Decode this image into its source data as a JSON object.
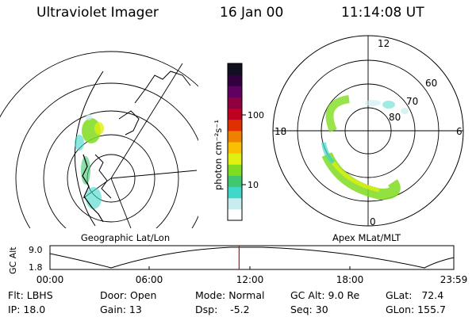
{
  "header": {
    "title": "Ultraviolet Imager",
    "date": "16 Jan 00",
    "time": "11:14:08 UT"
  },
  "colorbar": {
    "label": "photon cm⁻²s⁻¹",
    "ticks": [
      "100",
      "10"
    ],
    "colors": [
      "#ffffff",
      "#c8ecf0",
      "#40d8c8",
      "#40c870",
      "#80dc20",
      "#e0f010",
      "#f8c000",
      "#f08000",
      "#e03000",
      "#c00020",
      "#900040",
      "#600060",
      "#300040",
      "#101020"
    ]
  },
  "left_panel": {
    "label": "Geographic Lat/Lon"
  },
  "right_panel": {
    "label": "Apex MLat/MLT",
    "mlt_labels": [
      "12",
      "18",
      "6",
      "0"
    ],
    "lat_labels": [
      "60",
      "70",
      "80"
    ]
  },
  "timeline": {
    "axis_title": "GC Alt",
    "y_labels": [
      "9.0",
      "1.8"
    ],
    "x_labels": [
      "00:00",
      "06:00",
      "12:00",
      "18:00",
      "23:59"
    ],
    "marker_time": "11:14",
    "marker_color": "#e00000"
  },
  "info": {
    "flt": "Flt: LBHS",
    "ip": "IP: 18.0",
    "door": "Door: Open",
    "gain": "Gain: 13",
    "mode": "Mode: Normal",
    "dsp": "Dsp:    -5.2",
    "gcalt": "GC Alt: 9.0 Re",
    "seq": "Seq: 30",
    "glat": "GLat:   72.4",
    "glon": "GLon: 155.7"
  }
}
